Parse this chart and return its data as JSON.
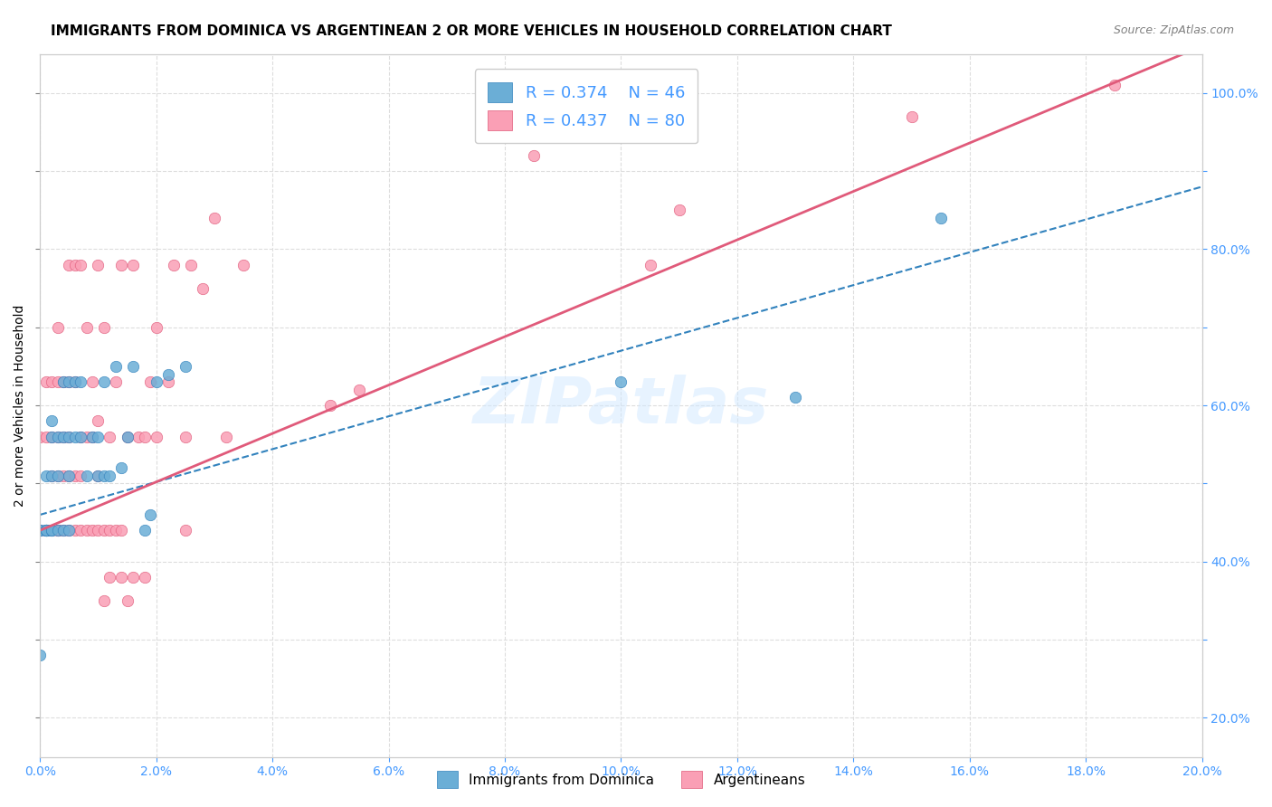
{
  "title": "IMMIGRANTS FROM DOMINICA VS ARGENTINEAN 2 OR MORE VEHICLES IN HOUSEHOLD CORRELATION CHART",
  "source": "Source: ZipAtlas.com",
  "xlabel_bottom": "",
  "ylabel": "2 or more Vehicles in Household",
  "x_ticks": [
    "0.0%",
    "",
    "",
    "",
    "",
    "",
    "",
    "",
    "",
    "20.0%"
  ],
  "y_ticks_left": [
    "",
    "",
    "",
    "",
    "",
    "",
    "",
    "",
    "",
    ""
  ],
  "y_ticks_right": [
    "20.0%",
    "",
    "40.0%",
    "",
    "60.0%",
    "",
    "80.0%",
    "",
    "100.0%"
  ],
  "xlim": [
    0.0,
    0.2
  ],
  "ylim": [
    0.15,
    1.05
  ],
  "legend_r1": "R = 0.374",
  "legend_n1": "N = 46",
  "legend_r2": "R = 0.437",
  "legend_n2": "N = 80",
  "blue_color": "#6baed6",
  "pink_color": "#fa9fb5",
  "blue_line_color": "#3182bd",
  "pink_line_color": "#e05a7a",
  "blue_scatter": {
    "x": [
      0.0,
      0.0,
      0.0,
      0.001,
      0.001,
      0.001,
      0.001,
      0.001,
      0.002,
      0.002,
      0.002,
      0.002,
      0.002,
      0.003,
      0.003,
      0.003,
      0.004,
      0.004,
      0.004,
      0.005,
      0.005,
      0.005,
      0.005,
      0.006,
      0.006,
      0.007,
      0.007,
      0.008,
      0.009,
      0.01,
      0.01,
      0.011,
      0.011,
      0.012,
      0.013,
      0.014,
      0.015,
      0.016,
      0.018,
      0.019,
      0.02,
      0.022,
      0.025,
      0.1,
      0.13,
      0.155
    ],
    "y": [
      0.28,
      0.44,
      0.44,
      0.44,
      0.44,
      0.44,
      0.44,
      0.51,
      0.44,
      0.44,
      0.51,
      0.56,
      0.58,
      0.44,
      0.51,
      0.56,
      0.44,
      0.56,
      0.63,
      0.44,
      0.51,
      0.56,
      0.63,
      0.56,
      0.63,
      0.56,
      0.63,
      0.51,
      0.56,
      0.51,
      0.56,
      0.51,
      0.63,
      0.51,
      0.65,
      0.52,
      0.56,
      0.65,
      0.44,
      0.46,
      0.63,
      0.64,
      0.65,
      0.63,
      0.61,
      0.84
    ]
  },
  "pink_scatter": {
    "x": [
      0.0,
      0.0,
      0.001,
      0.001,
      0.001,
      0.001,
      0.002,
      0.002,
      0.002,
      0.002,
      0.003,
      0.003,
      0.003,
      0.003,
      0.003,
      0.003,
      0.004,
      0.004,
      0.004,
      0.004,
      0.005,
      0.005,
      0.005,
      0.005,
      0.005,
      0.006,
      0.006,
      0.006,
      0.006,
      0.007,
      0.007,
      0.007,
      0.007,
      0.008,
      0.008,
      0.008,
      0.009,
      0.009,
      0.009,
      0.01,
      0.01,
      0.01,
      0.01,
      0.011,
      0.011,
      0.011,
      0.012,
      0.012,
      0.012,
      0.013,
      0.013,
      0.014,
      0.014,
      0.014,
      0.015,
      0.015,
      0.016,
      0.016,
      0.017,
      0.018,
      0.018,
      0.019,
      0.02,
      0.02,
      0.022,
      0.023,
      0.025,
      0.025,
      0.026,
      0.028,
      0.03,
      0.032,
      0.035,
      0.05,
      0.055,
      0.085,
      0.105,
      0.11,
      0.15,
      0.185
    ],
    "y": [
      0.44,
      0.56,
      0.44,
      0.44,
      0.56,
      0.63,
      0.44,
      0.51,
      0.56,
      0.63,
      0.44,
      0.44,
      0.51,
      0.56,
      0.63,
      0.7,
      0.44,
      0.51,
      0.56,
      0.63,
      0.44,
      0.51,
      0.56,
      0.63,
      0.78,
      0.44,
      0.51,
      0.63,
      0.78,
      0.44,
      0.51,
      0.56,
      0.78,
      0.44,
      0.56,
      0.7,
      0.44,
      0.56,
      0.63,
      0.44,
      0.51,
      0.58,
      0.78,
      0.35,
      0.44,
      0.7,
      0.38,
      0.44,
      0.56,
      0.44,
      0.63,
      0.38,
      0.44,
      0.78,
      0.35,
      0.56,
      0.38,
      0.78,
      0.56,
      0.38,
      0.56,
      0.63,
      0.56,
      0.7,
      0.63,
      0.78,
      0.44,
      0.56,
      0.78,
      0.75,
      0.84,
      0.56,
      0.78,
      0.6,
      0.62,
      0.92,
      0.78,
      0.85,
      0.97,
      1.01
    ]
  },
  "blue_regline": {
    "x": [
      0.0,
      0.2
    ],
    "y_intercept": 0.46,
    "slope": 2.1
  },
  "pink_regline": {
    "x": [
      0.0,
      0.2
    ],
    "y_intercept": 0.44,
    "slope": 3.1
  },
  "legend_labels": [
    "Immigrants from Dominica",
    "Argentineans"
  ],
  "watermark": "ZIPatlas",
  "background_color": "#ffffff",
  "grid_color": "#dddddd",
  "title_fontsize": 11,
  "source_fontsize": 9,
  "axis_label_fontsize": 10
}
